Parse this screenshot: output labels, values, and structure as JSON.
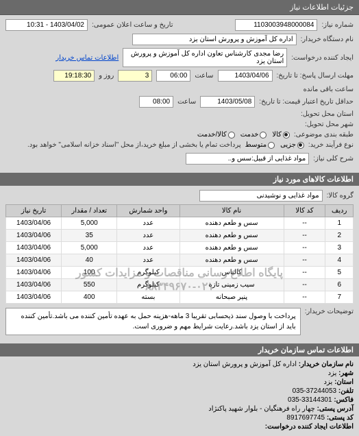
{
  "header": {
    "title": "جزئیات اطلاعات نیاز"
  },
  "form": {
    "need_no_label": "شماره نیاز:",
    "need_no": "1103003948000084",
    "announce_label": "تاریخ و ساعت اعلان عمومی:",
    "announce_value": "1403/04/02 - 10:31",
    "buyer_label": "نام دستگاه خریدار:",
    "buyer": "اداره کل آموزش و پرورش استان یزد",
    "requester_label": "ایجاد کننده درخواست:",
    "requester": "رضا مجدی کارشناس تعاون اداره کل آموزش و پرورش استان یزد",
    "contact_link": "اطلاعات تماس خریدار",
    "deadline_send_label": "مهلت ارسال پاسخ: تا تاریخ:",
    "deadline_send_date": "1403/04/06",
    "time_label": "ساعت",
    "deadline_send_time": "06:00",
    "remaining_days_val": "3",
    "remaining_days_unit": "روز و",
    "remaining_time": "19:18:30",
    "remaining_suffix": "ساعت باقی مانده",
    "validity_label": "حداقل تاریخ اعتبار قیمت: تا تاریخ:",
    "validity_date": "1403/05/08",
    "validity_time": "08:00",
    "delivery_province_label": "استان محل تحویل:",
    "delivery_city_label": "شهر محل تحویل:",
    "category_label": "طبقه بندی موضوعی:",
    "cat_goods": "کالا",
    "cat_service": "خدمت",
    "cat_goods_service": "کالا/خدمت",
    "buy_type_label": "نوع فرآیند خرید:",
    "buy_partial": "جزیی",
    "buy_medium": "متوسط",
    "buy_note": "پرداخت تمام یا بخشی از مبلغ خرید،از محل \"اسناد خزانه اسلامی\" خواهد بود.",
    "need_desc_label": "شرح کلی نیاز:",
    "need_desc": "مواد غذایی از قبیل:سس و..",
    "goods_section_title": "اطلاعات کالاهای مورد نیاز",
    "goods_group_label": "گروه کالا:",
    "goods_group": "مواد غذایی و نوشیدنی",
    "explain_label": "توضیحات خریدار:",
    "explain_text": "پرداخت با وصول سند ذیحسابی تقریبا 3 ماهه-هزینه حمل به عهده تأمین کننده می باشد.تأمین کننده باید از استان یزد باشد.رعایت شرایط مهم و ضروری است."
  },
  "table": {
    "columns": [
      "ردیف",
      "کد کالا",
      "نام کالا",
      "واحد شمارش",
      "تعداد / مقدار",
      "تاریخ نیاز"
    ],
    "col_widths": [
      "8%",
      "12%",
      "30%",
      "18%",
      "16%",
      "16%"
    ],
    "rows": [
      [
        "1",
        "--",
        "سس و طعم دهنده",
        "عدد",
        "5,000",
        "1403/04/06"
      ],
      [
        "2",
        "--",
        "سس و طعم دهنده",
        "عدد",
        "35",
        "1403/04/06"
      ],
      [
        "3",
        "--",
        "سس و طعم دهنده",
        "عدد",
        "5,000",
        "1403/04/06"
      ],
      [
        "4",
        "--",
        "سس و طعم دهنده",
        "عدد",
        "40",
        "1403/04/06"
      ],
      [
        "5",
        "--",
        "کالباس",
        "کیلوگرم",
        "100",
        "1403/04/06"
      ],
      [
        "6",
        "--",
        "سیب زمینی تازه",
        "کیلوگرم",
        "550",
        "1403/04/06"
      ],
      [
        "7",
        "--",
        "پنیر صبحانه",
        "بسته",
        "400",
        "1403/04/06"
      ]
    ],
    "watermark_line1": "پایگاه اطلاع رسانی مناقصات و مزایدات کشور",
    "watermark_line2": "۸۸۳۴۹۶۷۰-۰۲۱"
  },
  "footer": {
    "title": "اطلاعات تماس سازمان خریدار",
    "org_label": "نام سازمان خریدار:",
    "org": "اداره کل آموزش و پرورش استان یزد",
    "city_label": "شهر:",
    "city": "یزد",
    "province_label": "استان:",
    "province": "یزد",
    "phone_label": "تلفن:",
    "phone": "37244053-035",
    "fax_label": "فاكس:",
    "fax": "33144301-035",
    "addr_label": "آدرس پستی:",
    "addr": "چهار راه فرهنگیان - بلوار شهید پاکنژاد",
    "post_label": "کد پستی:",
    "post": "8917697745",
    "req_contact_title": "اطلاعات ایجاد کننده درخواست:"
  }
}
